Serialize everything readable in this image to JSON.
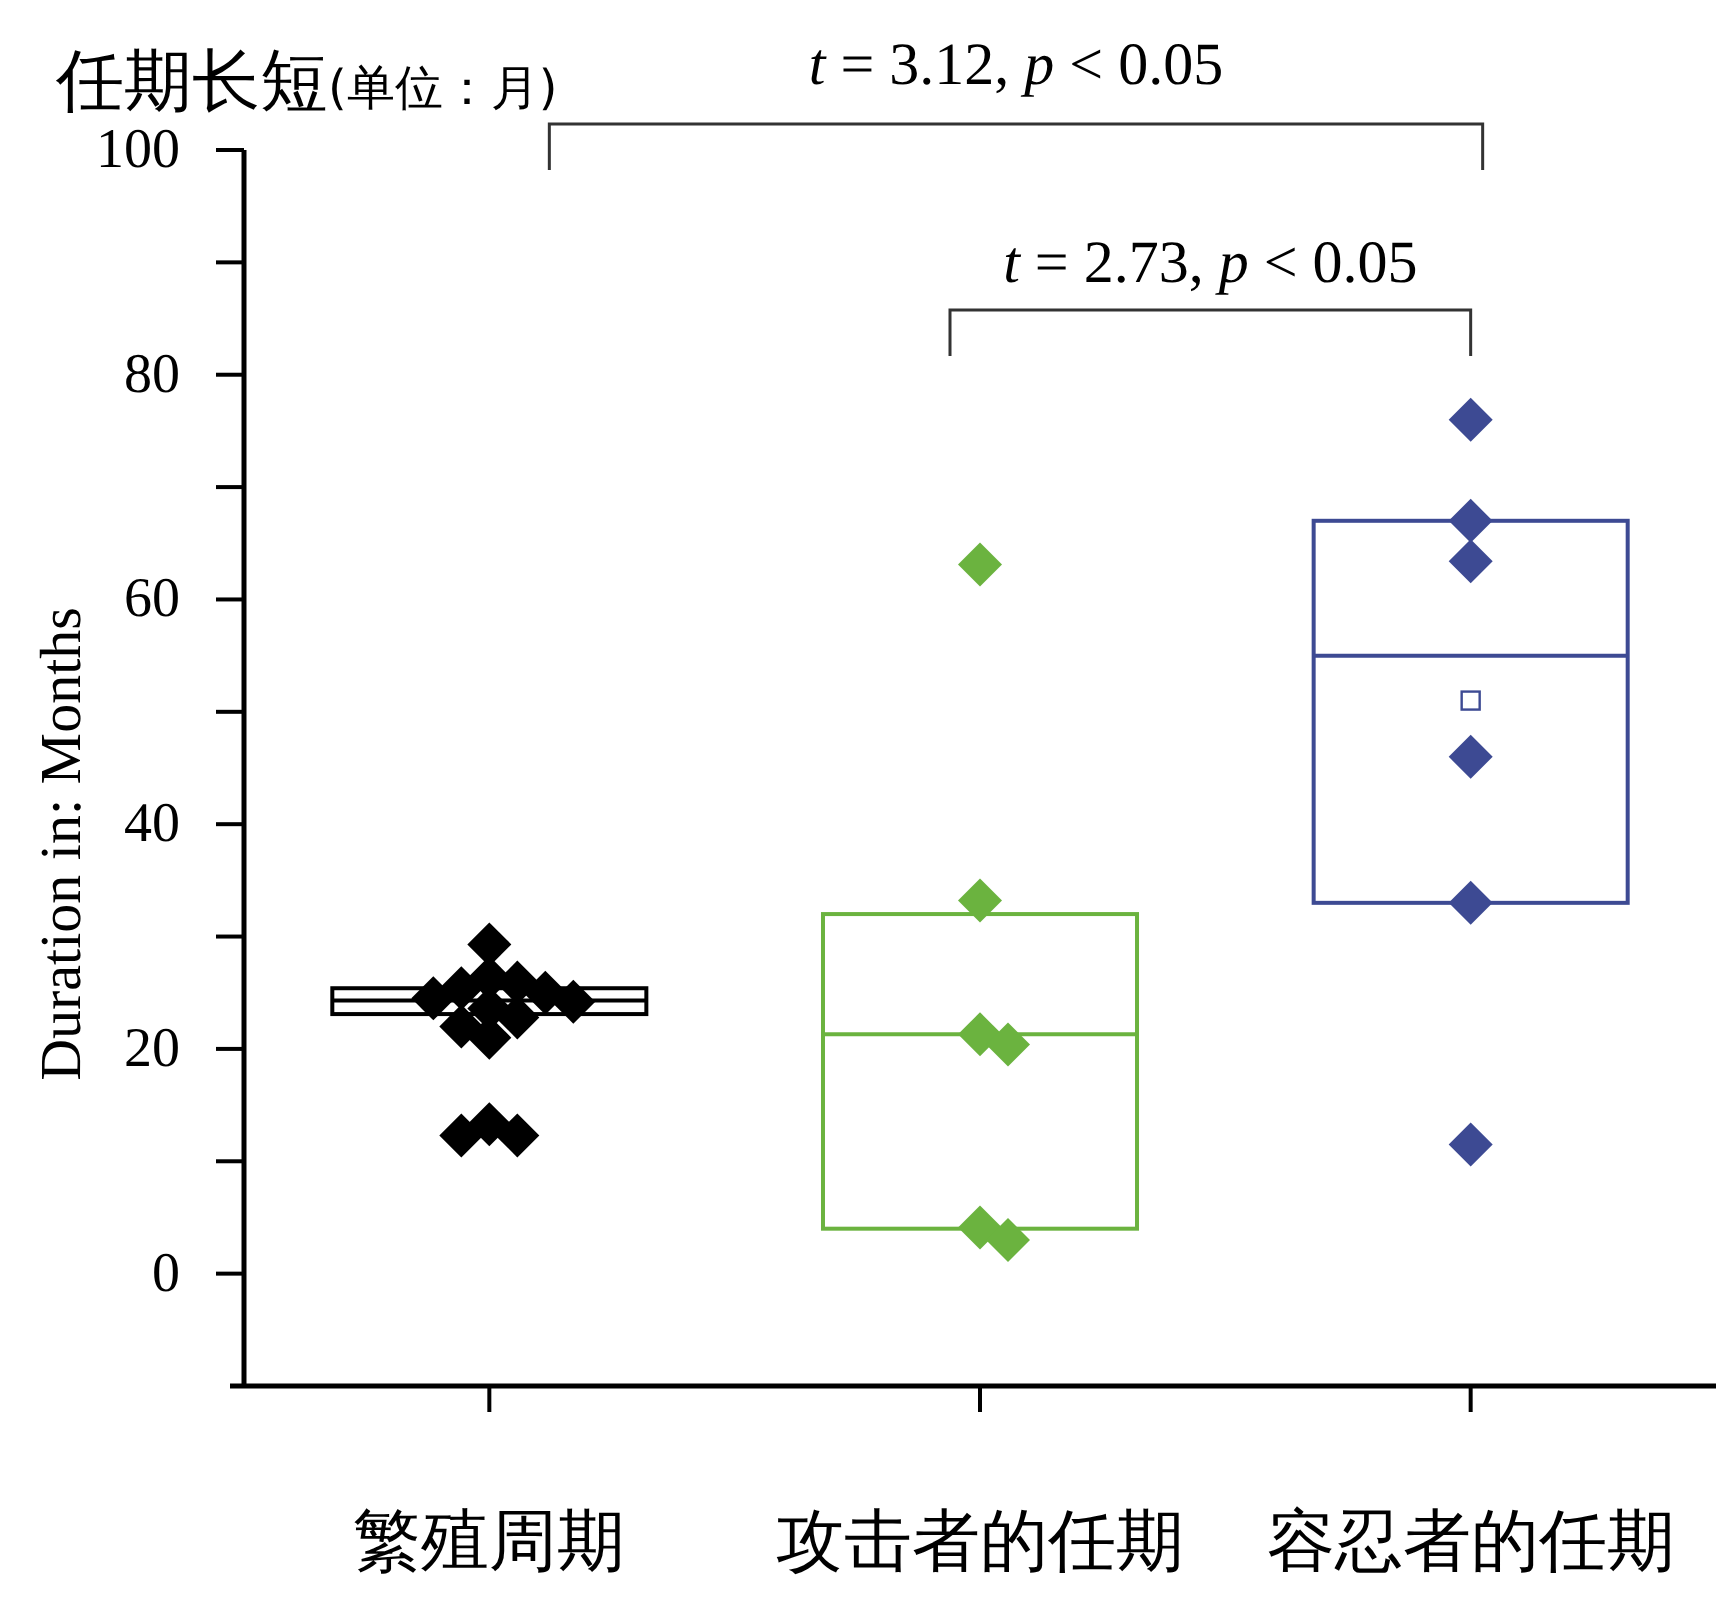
{
  "chart_data": {
    "type": "box",
    "title": "任期长短(单位：月)",
    "ylabel": "Duration in: Months",
    "categories": [
      "繁殖周期",
      "攻击者的任期",
      "容忍者的任期"
    ],
    "ylim": [
      -10,
      100
    ],
    "yticks": [
      0,
      {
        "value": 10,
        "label": null
      },
      20,
      {
        "value": 30,
        "label": null
      },
      40,
      {
        "value": 50,
        "label": null
      },
      60,
      {
        "value": 70,
        "label": null
      },
      80,
      {
        "value": 90,
        "label": null
      },
      100
    ],
    "boxes": [
      {
        "low": 23.1,
        "q1": 23.1,
        "median": 24.3,
        "q3": 25.4,
        "high": 25.4
      },
      {
        "low": 4,
        "q1": 4,
        "median": 21.3,
        "q3": 32,
        "high": 32
      },
      {
        "low": 33,
        "q1": 33,
        "median": 55,
        "q3": 67,
        "high": 67,
        "mean": 51
      }
    ],
    "colors": [
      "#000000",
      "#6bb33f",
      "#3d4a93"
    ],
    "series": [
      {
        "type": "scatter",
        "marker": "diamond",
        "color": "#000000",
        "x": [
          "繁殖周期",
          "繁殖周期",
          "繁殖周期",
          "繁殖周期",
          "繁殖周期",
          "繁殖周期",
          "繁殖周期",
          "繁殖周期",
          "繁殖周期",
          "繁殖周期",
          "繁殖周期",
          "繁殖周期",
          "繁殖周期",
          "繁殖周期"
        ],
        "values": [
          29.3,
          26.3,
          25.9,
          25.4,
          25.0,
          24.5,
          24.2,
          23.6,
          22.8,
          22.0,
          21.0,
          13.3,
          12.3,
          12.3
        ]
      },
      {
        "type": "scatter",
        "marker": "diamond",
        "color": "#6bb33f",
        "x": [
          "攻击者的任期",
          "攻击者的任期",
          "攻击者的任期",
          "攻击者的任期",
          "攻击者的任期",
          "攻击者的任期"
        ],
        "values": [
          63.1,
          33.2,
          21.3,
          20.4,
          4.1,
          3.0
        ]
      },
      {
        "type": "scatter",
        "marker": "diamond",
        "color": "#3d4a93",
        "x": [
          "容忍者的任期",
          "容忍者的任期",
          "容忍者的任期",
          "容忍者的任期",
          "容忍者的任期",
          "容忍者的任期"
        ],
        "values": [
          76.0,
          67.0,
          63.4,
          46.0,
          33.0,
          11.5
        ]
      }
    ],
    "annotations": [
      "t = 3.12, p < 0.05",
      "t = 2.73, p < 0.05"
    ]
  }
}
